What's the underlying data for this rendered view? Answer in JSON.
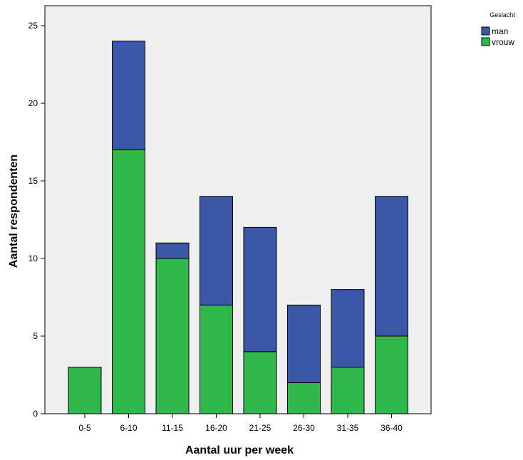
{
  "chart_data": {
    "type": "bar",
    "stacked": true,
    "categories": [
      "0-5",
      "6-10",
      "11-15",
      "16-20",
      "21-25",
      "26-30",
      "31-35",
      "36-40"
    ],
    "series": [
      {
        "name": "vrouw",
        "values": [
          3,
          17,
          10,
          7,
          4,
          2,
          3,
          5
        ],
        "color": "#31b84a"
      },
      {
        "name": "man",
        "values": [
          0,
          7,
          1,
          7,
          8,
          5,
          5,
          9
        ],
        "color": "#3a57a8"
      }
    ],
    "xlabel": "Aantal uur per week",
    "ylabel": "Aantal respondenten",
    "ylim": [
      0,
      25
    ],
    "yticks": [
      0,
      5,
      10,
      15,
      20,
      25
    ],
    "grid": false,
    "plot_background": "#f0f0f0",
    "legend": {
      "title": "Geslacht",
      "position": "top-right",
      "entries": [
        {
          "label": "man",
          "color": "#3a57a8"
        },
        {
          "label": "vrouw",
          "color": "#31b84a"
        }
      ]
    }
  }
}
